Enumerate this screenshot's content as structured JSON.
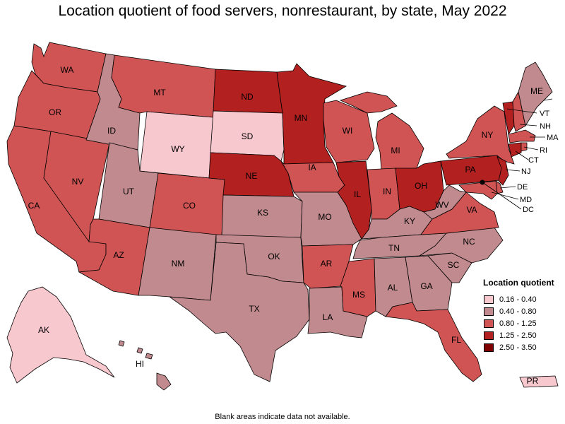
{
  "title": "Location quotient of food servers, nonrestaurant, by state, May 2022",
  "footnote": "Blank areas indicate data not available.",
  "legend": {
    "title": "Location quotient",
    "items": [
      {
        "label": "0.16 - 0.40",
        "color": "#f8c8cf"
      },
      {
        "label": "0.40 - 0.80",
        "color": "#c08a8e"
      },
      {
        "label": "0.80 - 1.25",
        "color": "#d05454"
      },
      {
        "label": "1.25 - 2.50",
        "color": "#b22020"
      },
      {
        "label": "2.50 - 3.50",
        "color": "#7e0000"
      }
    ]
  },
  "states": {
    "WA": {
      "label": "WA",
      "class": "0.80 - 1.25"
    },
    "OR": {
      "label": "OR",
      "class": "0.80 - 1.25"
    },
    "CA": {
      "label": "CA",
      "class": "0.80 - 1.25"
    },
    "NV": {
      "label": "NV",
      "class": "0.80 - 1.25"
    },
    "ID": {
      "label": "ID",
      "class": "0.40 - 0.80"
    },
    "MT": {
      "label": "MT",
      "class": "0.80 - 1.25"
    },
    "WY": {
      "label": "WY",
      "class": "0.16 - 0.40"
    },
    "UT": {
      "label": "UT",
      "class": "0.40 - 0.80"
    },
    "AZ": {
      "label": "AZ",
      "class": "0.80 - 1.25"
    },
    "CO": {
      "label": "CO",
      "class": "0.80 - 1.25"
    },
    "NM": {
      "label": "NM",
      "class": "0.40 - 0.80"
    },
    "ND": {
      "label": "ND",
      "class": "1.25 - 2.50"
    },
    "SD": {
      "label": "SD",
      "class": "0.16 - 0.40"
    },
    "NE": {
      "label": "NE",
      "class": "1.25 - 2.50"
    },
    "KS": {
      "label": "KS",
      "class": "0.40 - 0.80"
    },
    "OK": {
      "label": "OK",
      "class": "0.40 - 0.80"
    },
    "TX": {
      "label": "TX",
      "class": "0.40 - 0.80"
    },
    "MN": {
      "label": "MN",
      "class": "1.25 - 2.50"
    },
    "IA": {
      "label": "IA",
      "class": "0.80 - 1.25"
    },
    "MO": {
      "label": "MO",
      "class": "0.40 - 0.80"
    },
    "AR": {
      "label": "AR",
      "class": "0.80 - 1.25"
    },
    "LA": {
      "label": "LA",
      "class": "0.40 - 0.80"
    },
    "WI": {
      "label": "WI",
      "class": "0.80 - 1.25"
    },
    "IL": {
      "label": "IL",
      "class": "1.25 - 2.50"
    },
    "MI": {
      "label": "MI",
      "class": "0.80 - 1.25"
    },
    "IN": {
      "label": "IN",
      "class": "0.80 - 1.25"
    },
    "OH": {
      "label": "OH",
      "class": "1.25 - 2.50"
    },
    "KY": {
      "label": "KY",
      "class": "0.40 - 0.80"
    },
    "TN": {
      "label": "TN",
      "class": "0.40 - 0.80"
    },
    "MS": {
      "label": "MS",
      "class": "0.80 - 1.25"
    },
    "AL": {
      "label": "AL",
      "class": "0.40 - 0.80"
    },
    "GA": {
      "label": "GA",
      "class": "0.40 - 0.80"
    },
    "FL": {
      "label": "FL",
      "class": "0.80 - 1.25"
    },
    "SC": {
      "label": "SC",
      "class": "0.40 - 0.80"
    },
    "NC": {
      "label": "NC",
      "class": "0.40 - 0.80"
    },
    "VA": {
      "label": "VA",
      "class": "0.80 - 1.25"
    },
    "WV": {
      "label": "WV",
      "class": "0.40 - 0.80"
    },
    "PA": {
      "label": "PA",
      "class": "1.25 - 2.50"
    },
    "NY": {
      "label": "NY",
      "class": "0.80 - 1.25"
    },
    "VT": {
      "label": "VT",
      "class": "1.25 - 2.50"
    },
    "NH": {
      "label": "NH",
      "class": "0.80 - 1.25"
    },
    "ME": {
      "label": "ME",
      "class": "0.40 - 0.80"
    },
    "MA": {
      "label": "MA",
      "class": "0.80 - 1.25"
    },
    "RI": {
      "label": "RI",
      "class": "0.80 - 1.25"
    },
    "CT": {
      "label": "CT",
      "class": "1.25 - 2.50"
    },
    "NJ": {
      "label": "NJ",
      "class": "1.25 - 2.50"
    },
    "DE": {
      "label": "DE",
      "class": "0.80 - 1.25"
    },
    "MD": {
      "label": "MD",
      "class": "0.80 - 1.25"
    },
    "DC": {
      "label": "DC",
      "class": "2.50 - 3.50"
    },
    "AK": {
      "label": "AK",
      "class": "0.16 - 0.40"
    },
    "HI": {
      "label": "HI",
      "class": "0.40 - 0.80"
    },
    "PR": {
      "label": "PR",
      "class": "0.16 - 0.40"
    }
  }
}
